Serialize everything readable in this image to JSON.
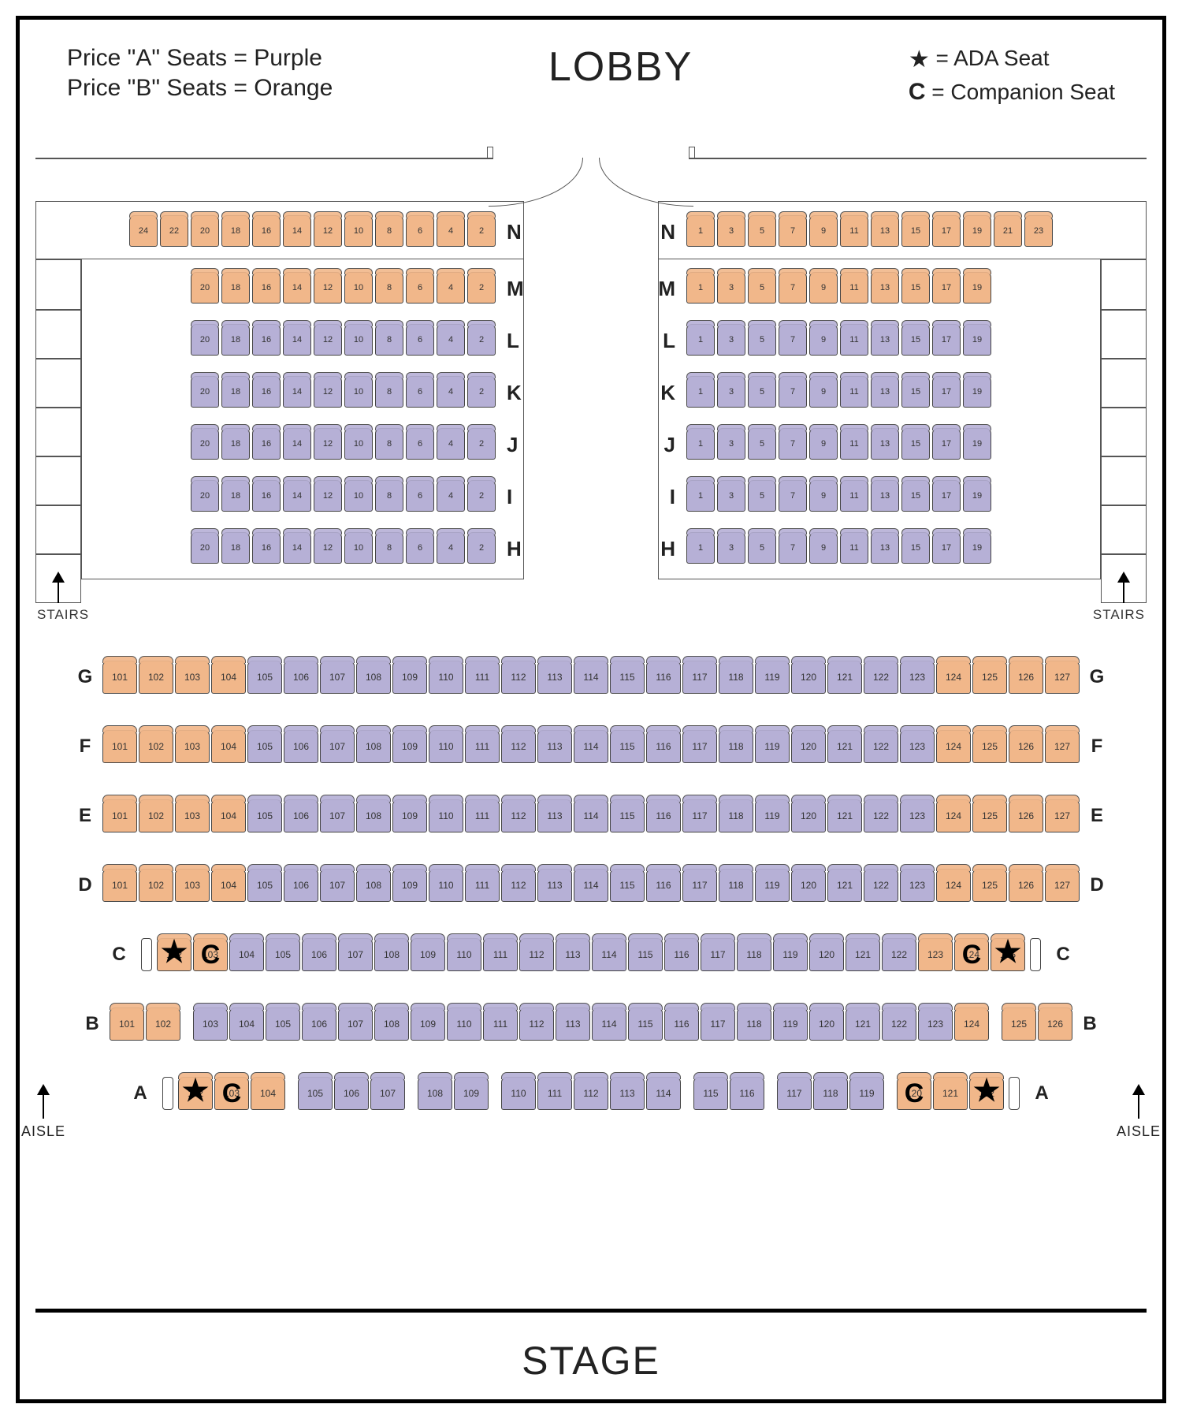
{
  "labels": {
    "lobby": "LOBBY",
    "stage": "STAGE",
    "stairs": "STAIRS",
    "aisle": "AISLE"
  },
  "legend": {
    "priceA": "Price \"A\" Seats = Purple",
    "priceB": "Price \"B\" Seats = Orange",
    "ada": "= ADA Seat",
    "companion": "= Companion Seat"
  },
  "colors": {
    "orange": "#f1b78a",
    "purple": "#b6b0d6",
    "line": "#555",
    "text": "#222"
  },
  "balcony": {
    "rowOrder": [
      "N",
      "M",
      "L",
      "K",
      "J",
      "I",
      "H"
    ],
    "rows": {
      "N": {
        "tier": "orange",
        "leftSeats": [
          24,
          22,
          20,
          18,
          16,
          14,
          12,
          10,
          8,
          6,
          4,
          2
        ],
        "rightSeats": [
          1,
          3,
          5,
          7,
          9,
          11,
          13,
          15,
          17,
          19,
          21,
          23
        ]
      },
      "M": {
        "tier": "orange",
        "leftSeats": [
          20,
          18,
          16,
          14,
          12,
          10,
          8,
          6,
          4,
          2
        ],
        "rightSeats": [
          1,
          3,
          5,
          7,
          9,
          11,
          13,
          15,
          17,
          19
        ]
      },
      "L": {
        "tier": "purple",
        "leftSeats": [
          20,
          18,
          16,
          14,
          12,
          10,
          8,
          6,
          4,
          2
        ],
        "rightSeats": [
          1,
          3,
          5,
          7,
          9,
          11,
          13,
          15,
          17,
          19
        ]
      },
      "K": {
        "tier": "purple",
        "leftSeats": [
          20,
          18,
          16,
          14,
          12,
          10,
          8,
          6,
          4,
          2
        ],
        "rightSeats": [
          1,
          3,
          5,
          7,
          9,
          11,
          13,
          15,
          17,
          19
        ]
      },
      "J": {
        "tier": "purple",
        "leftSeats": [
          20,
          18,
          16,
          14,
          12,
          10,
          8,
          6,
          4,
          2
        ],
        "rightSeats": [
          1,
          3,
          5,
          7,
          9,
          11,
          13,
          15,
          17,
          19
        ]
      },
      "I": {
        "tier": "purple",
        "leftSeats": [
          20,
          18,
          16,
          14,
          12,
          10,
          8,
          6,
          4,
          2
        ],
        "rightSeats": [
          1,
          3,
          5,
          7,
          9,
          11,
          13,
          15,
          17,
          19
        ]
      },
      "H": {
        "tier": "purple",
        "leftSeats": [
          20,
          18,
          16,
          14,
          12,
          10,
          8,
          6,
          4,
          2
        ],
        "rightSeats": [
          1,
          3,
          5,
          7,
          9,
          11,
          13,
          15,
          17,
          19
        ]
      }
    }
  },
  "floor": {
    "rowOrder": [
      "G",
      "F",
      "E",
      "D",
      "C",
      "B",
      "A"
    ],
    "rows": {
      "G": {
        "start": 101,
        "end": 127,
        "orangeRanges": [
          [
            101,
            104
          ],
          [
            124,
            127
          ]
        ]
      },
      "F": {
        "start": 101,
        "end": 127,
        "orangeRanges": [
          [
            101,
            104
          ],
          [
            124,
            127
          ]
        ]
      },
      "E": {
        "start": 101,
        "end": 127,
        "orangeRanges": [
          [
            101,
            104
          ],
          [
            124,
            127
          ]
        ]
      },
      "D": {
        "start": 101,
        "end": 127,
        "orangeRanges": [
          [
            101,
            104
          ],
          [
            124,
            127
          ]
        ]
      },
      "C": {
        "start": 102,
        "end": 125,
        "orangeRanges": [
          [
            102,
            103
          ],
          [
            123,
            125
          ]
        ],
        "overlays": {
          "102": "star",
          "103": "C",
          "124": "C",
          "125": "star"
        },
        "sideRails": true
      },
      "B": {
        "start": 101,
        "end": 126,
        "orangeRanges": [
          [
            101,
            102
          ],
          [
            124,
            126
          ]
        ],
        "gapsAfter": [
          102,
          124
        ]
      },
      "A": {
        "start": 102,
        "end": 122,
        "orangeRanges": [
          [
            102,
            104
          ],
          [
            120,
            122
          ]
        ],
        "overlays": {
          "102": "star",
          "103": "C",
          "120": "C",
          "122": "star"
        },
        "gapsAfter": [
          104,
          107,
          109,
          114,
          116,
          119
        ],
        "sideRails": true
      }
    }
  }
}
